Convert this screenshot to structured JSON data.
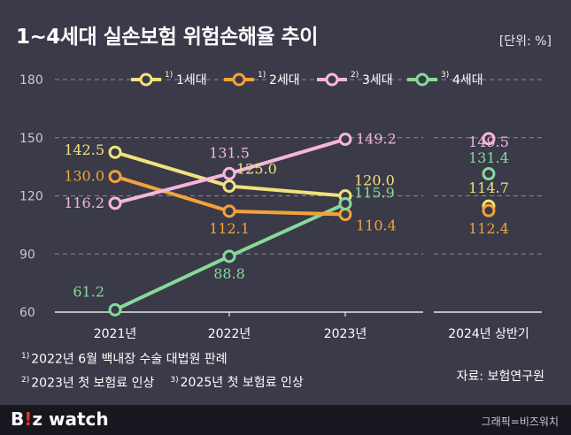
{
  "title": "1~4세대 실손보험 위험손해율 추이",
  "unit": "[단위: %]",
  "chart_data": {
    "type": "line",
    "categories": [
      "2021년",
      "2022년",
      "2023년"
    ],
    "extra_category": "2024년 상반기",
    "yticks": [
      60,
      90,
      120,
      150,
      180
    ],
    "ylim": [
      60,
      180
    ],
    "legend_position": "top",
    "series": [
      {
        "name": "1세대",
        "note": "1)",
        "color": "#f2e27a",
        "values": [
          142.5,
          125.0,
          120.0
        ],
        "extra": 114.7,
        "labels": [
          "142.5",
          "125.0",
          "120.0"
        ],
        "extra_label": "114.7"
      },
      {
        "name": "2세대",
        "note": "1)",
        "color": "#f2a23a",
        "values": [
          130.0,
          112.1,
          110.4
        ],
        "extra": 112.4,
        "labels": [
          "130.0",
          "112.1",
          "110.4"
        ],
        "extra_label": "112.4"
      },
      {
        "name": "3세대",
        "note": "2)",
        "color": "#f4b6dc",
        "values": [
          116.2,
          131.5,
          149.2
        ],
        "extra": 149.5,
        "labels": [
          "116.2",
          "131.5",
          "149.2"
        ],
        "extra_label": "149.5"
      },
      {
        "name": "4세대",
        "note": "3)",
        "color": "#86d99a",
        "values": [
          61.2,
          88.8,
          115.9
        ],
        "extra": 131.4,
        "labels": [
          "61.2",
          "88.8",
          "115.9"
        ],
        "extra_label": "131.4"
      }
    ]
  },
  "notes": {
    "n1_mark": "1)",
    "n1": "2022년 6월 백내장 수술 대법원 판례",
    "n2_mark": "2)",
    "n2": "2023년 첫 보험료 인상",
    "n3_mark": "3)",
    "n3": "2025년 첫 보험료 인상"
  },
  "source": "자료: 보험연구원",
  "footer": {
    "logo_b": "B",
    "logo_i": "!",
    "logo_z": "z",
    "logo_rest": " watch",
    "credit": "그래픽=비즈워치"
  }
}
